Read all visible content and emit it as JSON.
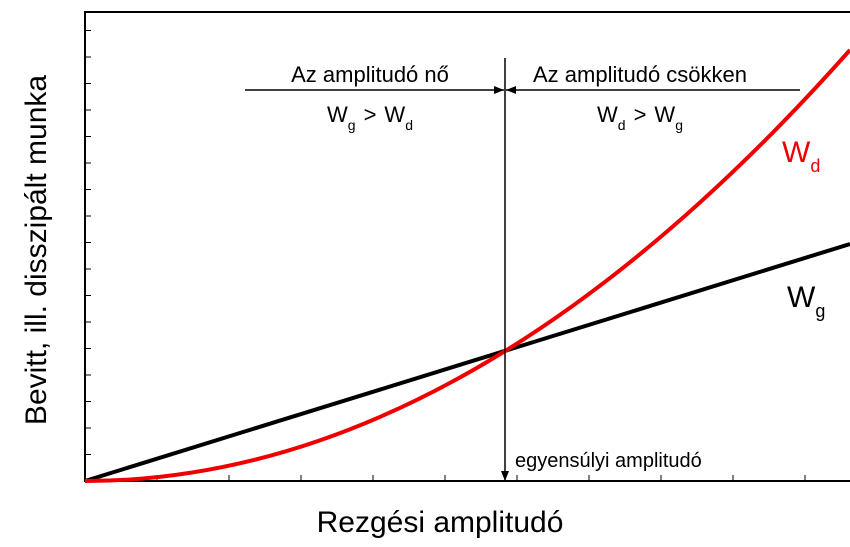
{
  "axes": {
    "y_label": "Bevitt, ill. disszipált munka",
    "x_label": "Rezgési amplitudó"
  },
  "regions": [
    {
      "title": "Az amplitudó nő",
      "condition": {
        "left": {
          "main": "W",
          "sub": "g"
        },
        "op": ">",
        "right": {
          "main": "W",
          "sub": "d"
        }
      }
    },
    {
      "title": "Az amplitudó csökken",
      "condition": {
        "left": {
          "main": "W",
          "sub": "d"
        },
        "op": ">",
        "right": {
          "main": "W",
          "sub": "g"
        }
      }
    }
  ],
  "curves": [
    {
      "main": "W",
      "sub": "d"
    },
    {
      "main": "W",
      "sub": "g"
    }
  ],
  "equilibrium_label": "egyensúlyi amplitudó"
}
